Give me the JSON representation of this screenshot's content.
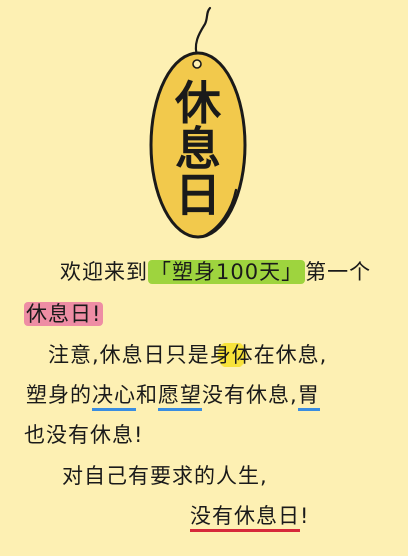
{
  "tag": {
    "chars": [
      "休",
      "息",
      "日"
    ],
    "fill_color": "#F2C94C",
    "outline_color": "#1a1a1a"
  },
  "message": {
    "line1": {
      "prefix": "欢迎来到",
      "quoted": "「塑身100天」",
      "suffix": "第一个"
    },
    "line2": {
      "highlight": "休息日!"
    },
    "line3": {
      "part1": "注意,休息日只是",
      "highlight": "身体",
      "part2": "在休息,"
    },
    "line4": {
      "part1": "塑身的",
      "word1": "决心",
      "part2": "和",
      "word2": "愿望",
      "part3": "没有休息,",
      "word3": "胃"
    },
    "line5": {
      "text": "也没有休息!"
    },
    "line6": {
      "text": "对自己有要求的人生,"
    },
    "line7": {
      "highlight": "没有休息日",
      "end": "!"
    }
  },
  "colors": {
    "background": "#FDF0B3",
    "green_highlight": "#9ED43E",
    "pink_highlight": "#EE8DA4",
    "yellow_highlight": "#F7E23A",
    "blue_underline": "#3A8DE0",
    "red_underline": "#D6283A"
  }
}
